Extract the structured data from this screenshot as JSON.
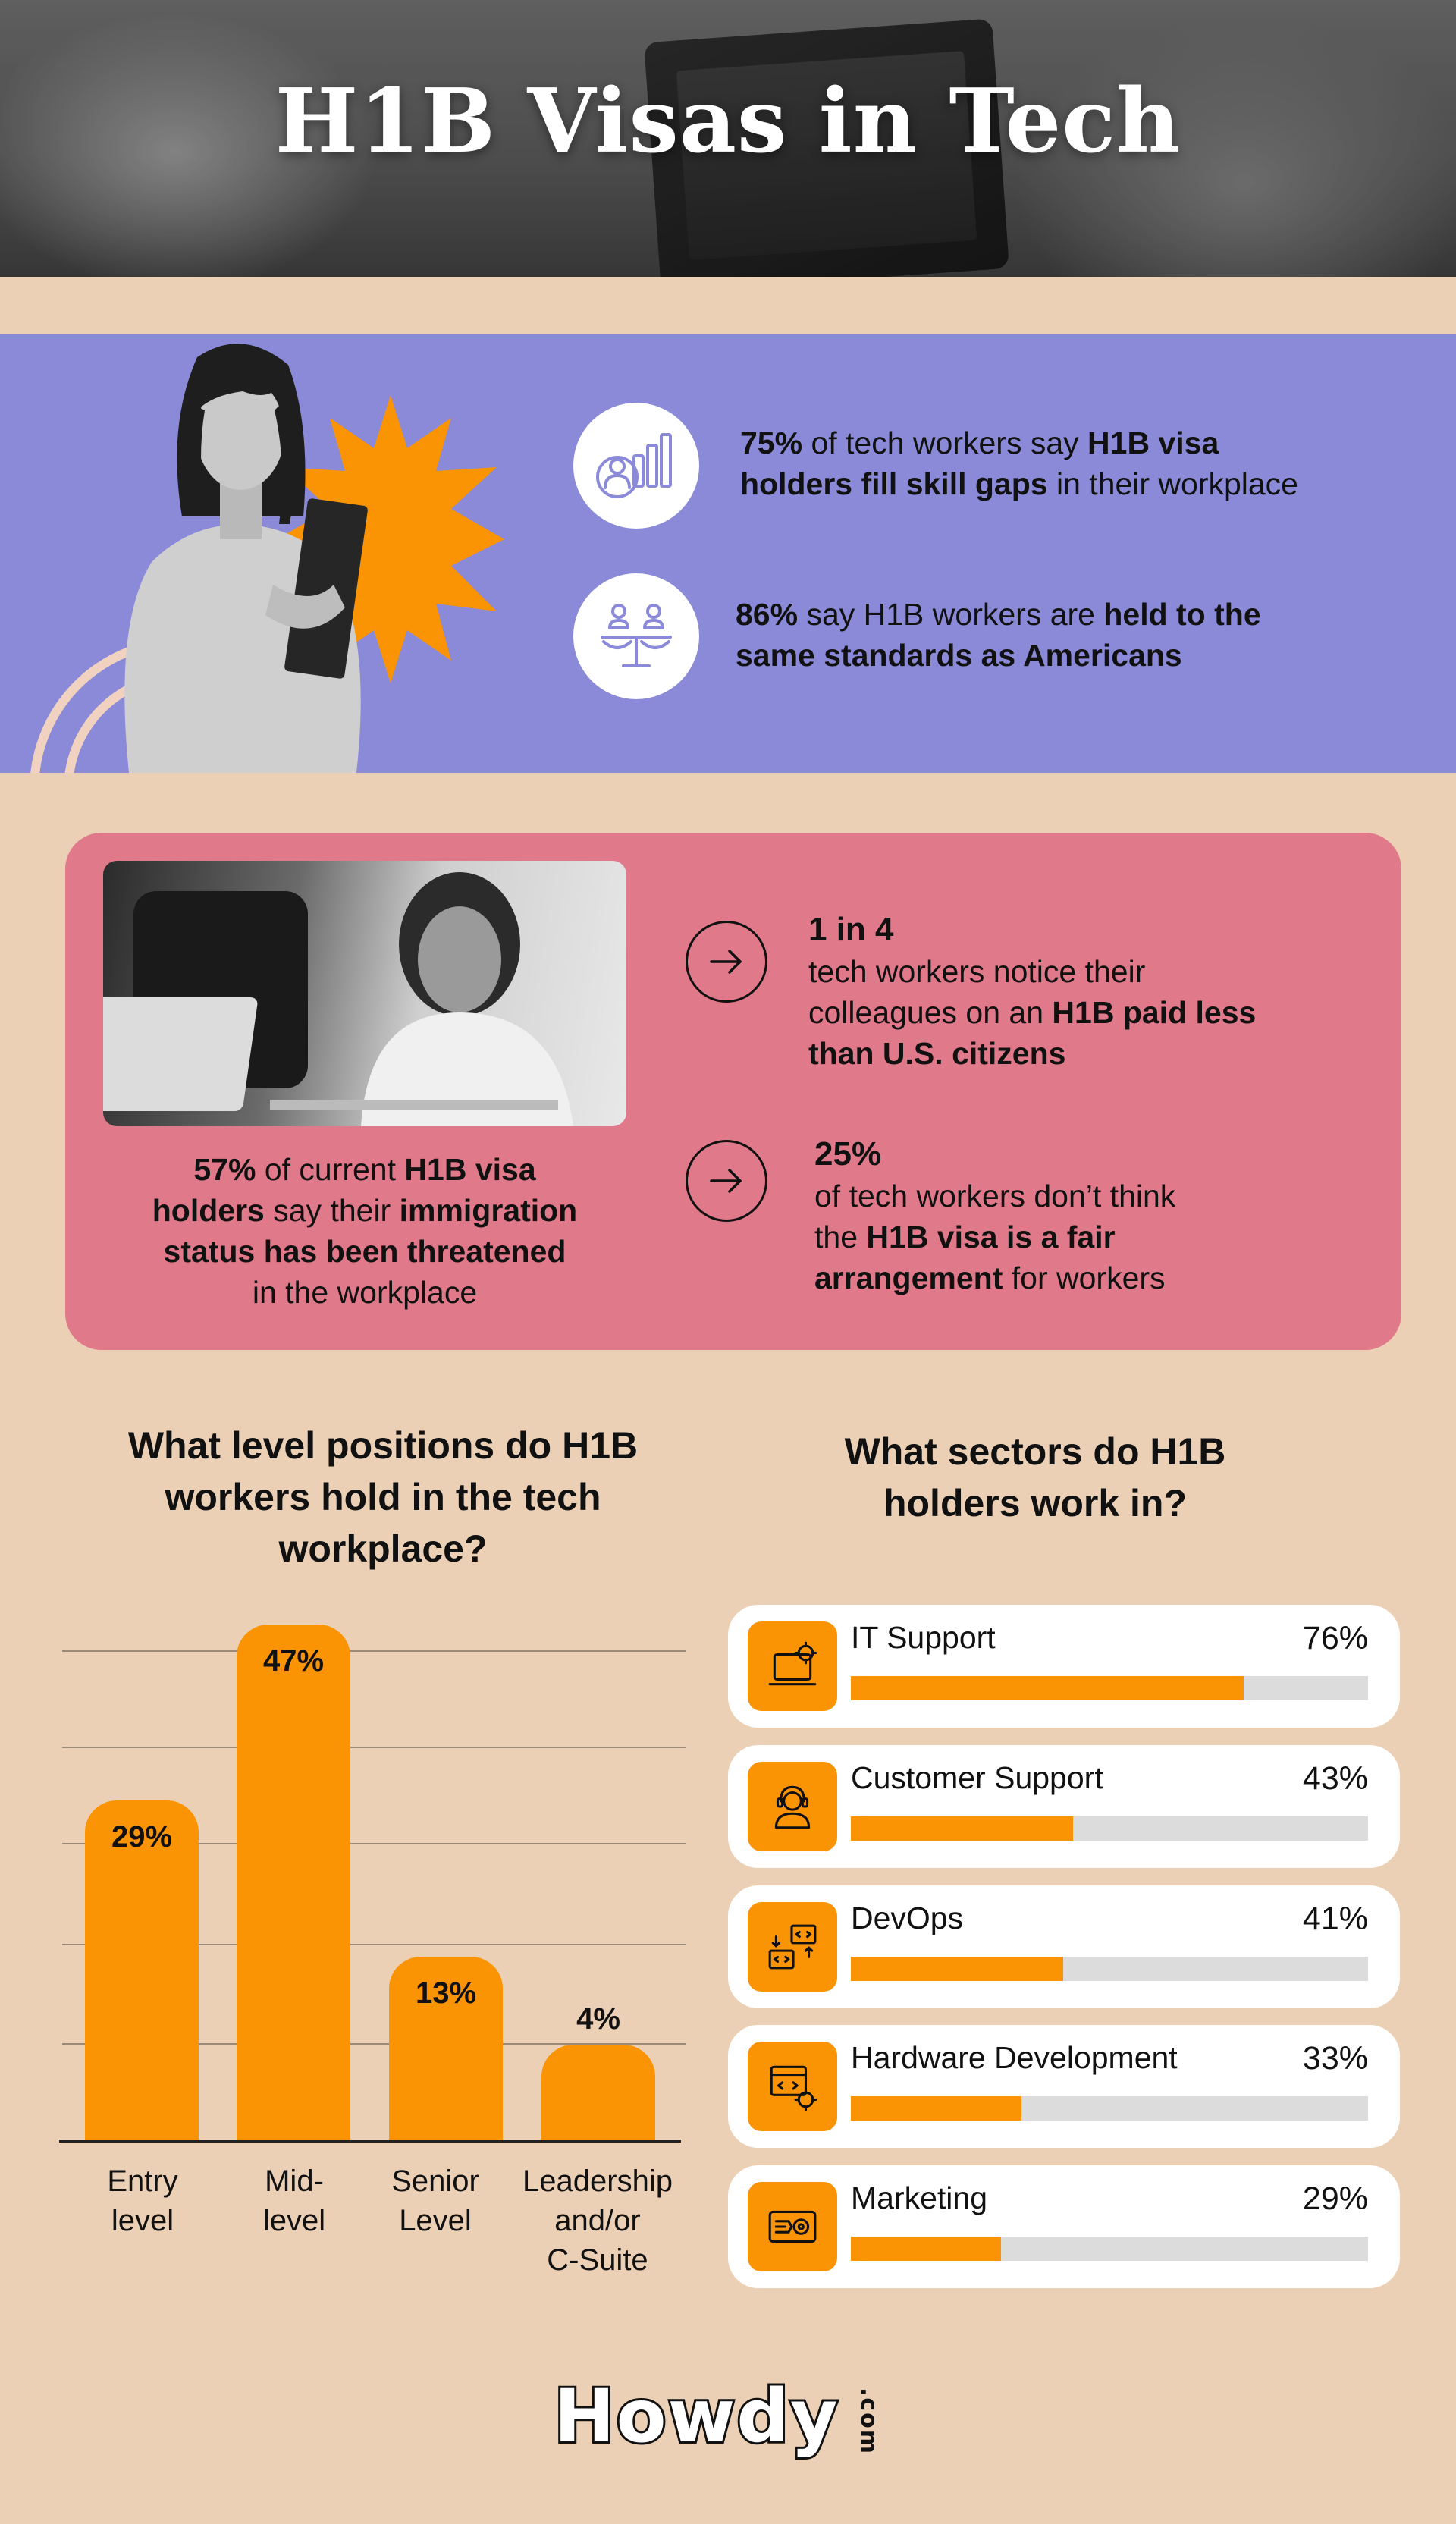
{
  "header": {
    "title": "H1B Visas in Tech"
  },
  "purple": {
    "stat1": {
      "pct": "75%",
      "t1": " of tech workers say ",
      "b1": "H1B visa",
      "b2": "holders fill skill gaps",
      "t2": " in their workplace",
      "icon": "chart-people-icon"
    },
    "stat2": {
      "pct": "86%",
      "t1": " say H1B workers are ",
      "b1": "held to the",
      "b2": "same standards as Americans",
      "icon": "scale-people-icon"
    }
  },
  "pink": {
    "quote": {
      "pct": "57%",
      "t1": " of current ",
      "b1": "H1B visa",
      "b2": "holders",
      "t2": " say their ",
      "b3": "immigration",
      "b4": "status has been threatened",
      "t3": "in the workplace"
    },
    "stat1": {
      "head": "1 in 4",
      "t1": "tech workers notice their",
      "t2": "colleagues on an ",
      "b1": "H1B paid less",
      "b2": "than U.S. citizens"
    },
    "stat2": {
      "head": "25%",
      "t1": "of tech workers don’t think",
      "t2": "the ",
      "b1": "H1B visa is a fair",
      "b2": "arrangement",
      "t3": " for workers"
    }
  },
  "levels": {
    "title_lines": [
      "What level positions do H1B",
      "workers hold in the tech",
      "workplace?"
    ],
    "cat_lines": [
      [
        "Entry",
        "level"
      ],
      [
        "Mid-",
        "level"
      ],
      [
        "Senior",
        "Level"
      ],
      [
        "Leadership",
        "and/or",
        "C-Suite"
      ]
    ]
  },
  "chart_data": [
    {
      "type": "bar",
      "title": "What level positions do H1B workers hold in the tech workplace?",
      "categories": [
        "Entry level",
        "Mid-level",
        "Senior Level",
        "Leadership and/or C-Suite"
      ],
      "values": [
        29,
        47,
        13,
        4
      ],
      "labels": [
        "29%",
        "47%",
        "13%",
        "4%"
      ],
      "ylim": [
        0,
        50
      ],
      "grid": true,
      "color": "#fb9405"
    },
    {
      "type": "bar",
      "orientation": "horizontal",
      "title": "What sectors do H1B holders work in?",
      "categories": [
        "IT Support",
        "Customer Support",
        "DevOps",
        "Hardware Development",
        "Marketing"
      ],
      "values": [
        76,
        43,
        41,
        33,
        29
      ],
      "labels": [
        "76%",
        "43%",
        "41%",
        "33%",
        "29%"
      ],
      "xlim": [
        0,
        100
      ],
      "icons": [
        "laptop-gear-icon",
        "headset-agent-icon",
        "code-windows-icon",
        "code-gear-icon",
        "marketing-icon"
      ],
      "color": "#fb9405",
      "track_color": "#dcdcdc"
    }
  ],
  "sectors": {
    "title_lines": [
      "What sectors do H1B",
      "holders work in?"
    ]
  },
  "logo": {
    "text": "Howdy",
    "suffix": ".com"
  }
}
